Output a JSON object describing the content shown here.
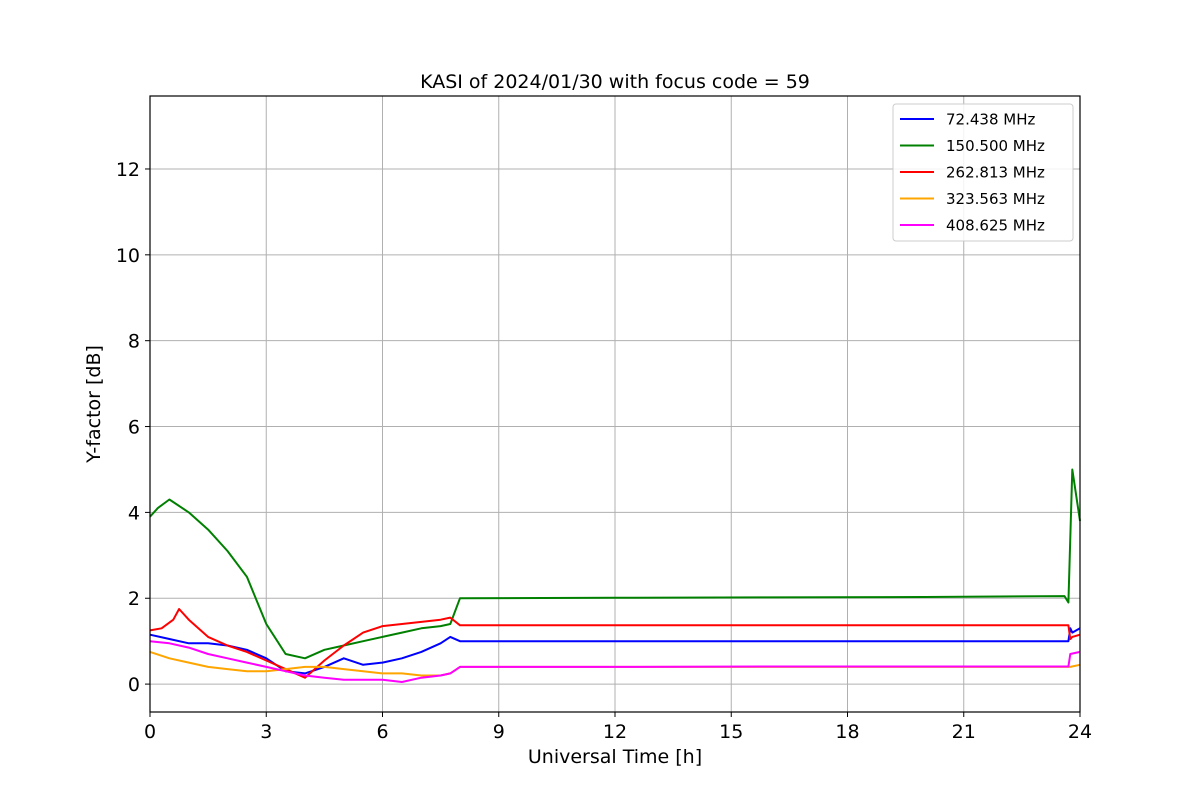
{
  "chart_data": {
    "type": "line",
    "title": "KASI of 2024/01/30 with focus code = 59",
    "xlabel": "Universal Time [h]",
    "ylabel": "Y-factor [dB]",
    "xlim": [
      0,
      24
    ],
    "ylim": [
      -0.65,
      13.7
    ],
    "xticks": [
      0,
      3,
      6,
      9,
      12,
      15,
      18,
      21,
      24
    ],
    "yticks": [
      0,
      2,
      4,
      6,
      8,
      10,
      12
    ],
    "grid": true,
    "legend_position": "top-right",
    "series": [
      {
        "name": " 72.438 MHz",
        "color": "#0000ff",
        "x": [
          0.0,
          0.5,
          1.0,
          1.5,
          2.0,
          2.5,
          3.0,
          3.5,
          4.0,
          4.5,
          5.0,
          5.5,
          6.0,
          6.5,
          7.0,
          7.5,
          7.75,
          8.0,
          12.0,
          16.0,
          20.0,
          23.7,
          23.75,
          23.8,
          24.0
        ],
        "y": [
          1.15,
          1.05,
          0.95,
          0.95,
          0.9,
          0.8,
          0.6,
          0.3,
          0.25,
          0.4,
          0.6,
          0.45,
          0.5,
          0.6,
          0.75,
          0.95,
          1.1,
          1.0,
          1.0,
          1.0,
          1.0,
          1.0,
          1.3,
          1.2,
          1.3
        ]
      },
      {
        "name": "150.500 MHz",
        "color": "#008000",
        "x": [
          0.0,
          0.2,
          0.5,
          1.0,
          1.5,
          2.0,
          2.5,
          3.0,
          3.5,
          4.0,
          4.5,
          5.0,
          5.5,
          6.0,
          6.5,
          7.0,
          7.5,
          7.75,
          8.0,
          12.0,
          16.0,
          20.0,
          23.6,
          23.7,
          23.8,
          24.0
        ],
        "y": [
          3.9,
          4.1,
          4.3,
          4.0,
          3.6,
          3.1,
          2.5,
          1.4,
          0.7,
          0.6,
          0.8,
          0.9,
          1.0,
          1.1,
          1.2,
          1.3,
          1.35,
          1.4,
          2.0,
          2.01,
          2.02,
          2.03,
          2.05,
          1.9,
          5.0,
          3.8
        ]
      },
      {
        "name": "262.813 MHz",
        "color": "#ff0000",
        "x": [
          0.0,
          0.3,
          0.6,
          0.75,
          1.0,
          1.5,
          2.0,
          2.5,
          3.0,
          3.5,
          4.0,
          4.5,
          5.0,
          5.5,
          6.0,
          6.5,
          7.0,
          7.5,
          7.75,
          8.0,
          12.0,
          16.0,
          20.0,
          23.7,
          23.75,
          23.8,
          24.0
        ],
        "y": [
          1.25,
          1.3,
          1.5,
          1.75,
          1.5,
          1.1,
          0.9,
          0.75,
          0.55,
          0.35,
          0.15,
          0.55,
          0.9,
          1.2,
          1.35,
          1.4,
          1.45,
          1.5,
          1.55,
          1.37,
          1.37,
          1.37,
          1.37,
          1.37,
          1.05,
          1.1,
          1.15
        ]
      },
      {
        "name": "323.563 MHz",
        "color": "#ffa500",
        "x": [
          0.0,
          0.5,
          1.0,
          1.5,
          2.0,
          2.5,
          3.0,
          3.5,
          4.0,
          4.5,
          5.0,
          5.5,
          6.0,
          6.5,
          7.0,
          7.5,
          7.75,
          8.0,
          12.0,
          16.0,
          20.0,
          23.7,
          23.75,
          24.0
        ],
        "y": [
          0.75,
          0.6,
          0.5,
          0.4,
          0.35,
          0.3,
          0.3,
          0.35,
          0.4,
          0.4,
          0.35,
          0.3,
          0.25,
          0.25,
          0.2,
          0.2,
          0.25,
          0.4,
          0.4,
          0.4,
          0.4,
          0.4,
          0.4,
          0.45
        ]
      },
      {
        "name": "408.625 MHz",
        "color": "#ff00ff",
        "x": [
          0.0,
          0.5,
          1.0,
          1.5,
          2.0,
          2.5,
          3.0,
          3.5,
          4.0,
          4.5,
          5.0,
          5.5,
          6.0,
          6.5,
          7.0,
          7.5,
          7.75,
          8.0,
          12.0,
          16.0,
          20.0,
          23.7,
          23.75,
          24.0
        ],
        "y": [
          1.0,
          0.95,
          0.85,
          0.7,
          0.6,
          0.5,
          0.4,
          0.3,
          0.2,
          0.15,
          0.1,
          0.1,
          0.1,
          0.05,
          0.15,
          0.2,
          0.25,
          0.4,
          0.4,
          0.41,
          0.41,
          0.41,
          0.7,
          0.75
        ]
      }
    ]
  }
}
